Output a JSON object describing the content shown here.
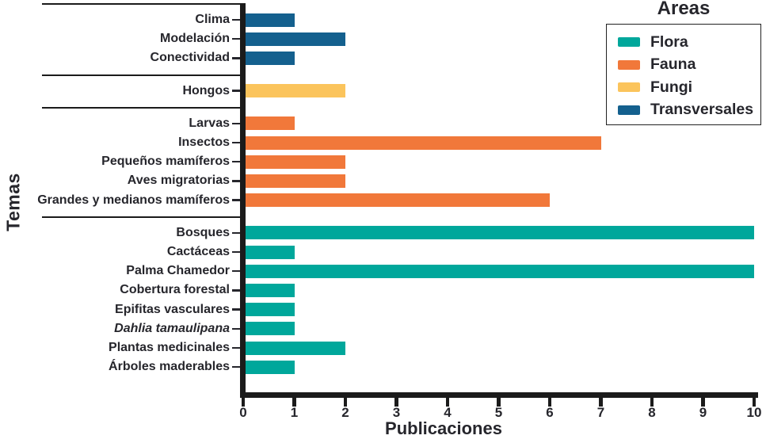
{
  "chart_data": {
    "type": "bar",
    "orientation": "horizontal",
    "xlabel": "Publicaciones",
    "ylabel": "Temas",
    "xlim": [
      0,
      10
    ],
    "xticks": [
      0,
      1,
      2,
      3,
      4,
      5,
      6,
      7,
      8,
      9,
      10
    ],
    "grid": false,
    "legend": {
      "title": "Áreas",
      "position": "upper-right",
      "entries": [
        {
          "label": "Flora",
          "color": "#00A79B"
        },
        {
          "label": "Fauna",
          "color": "#F1783A"
        },
        {
          "label": "Fungi",
          "color": "#FBC45C"
        },
        {
          "label": "Transversales",
          "color": "#14608E"
        }
      ]
    },
    "groups": [
      {
        "area": "Transversales",
        "color": "#14608E",
        "items": [
          {
            "label": "Clima",
            "value": 1
          },
          {
            "label": "Modelación",
            "value": 2
          },
          {
            "label": "Conectividad",
            "value": 1
          }
        ]
      },
      {
        "area": "Fungi",
        "color": "#FBC45C",
        "items": [
          {
            "label": "Hongos",
            "value": 2
          }
        ]
      },
      {
        "area": "Fauna",
        "color": "#F1783A",
        "items": [
          {
            "label": "Larvas",
            "value": 1
          },
          {
            "label": "Insectos",
            "value": 7
          },
          {
            "label": "Pequeños mamíferos",
            "value": 2
          },
          {
            "label": "Aves migratorias",
            "value": 2
          },
          {
            "label": "Grandes y medianos mamíferos",
            "value": 6
          }
        ]
      },
      {
        "area": "Flora",
        "color": "#00A79B",
        "items": [
          {
            "label": "Bosques",
            "value": 10
          },
          {
            "label": "Cactáceas",
            "value": 1
          },
          {
            "label": "Palma Chamedor",
            "value": 10
          },
          {
            "label": "Cobertura forestal",
            "value": 1
          },
          {
            "label": "Epifitas vasculares",
            "value": 1
          },
          {
            "label": "Dahlia tamaulipana",
            "value": 1,
            "italic": true
          },
          {
            "label": "Plantas medicinales",
            "value": 2
          },
          {
            "label": "Árboles maderables",
            "value": 1
          }
        ]
      }
    ],
    "colors": {
      "axis": "#1b1b1b",
      "text": "#26262c"
    }
  }
}
